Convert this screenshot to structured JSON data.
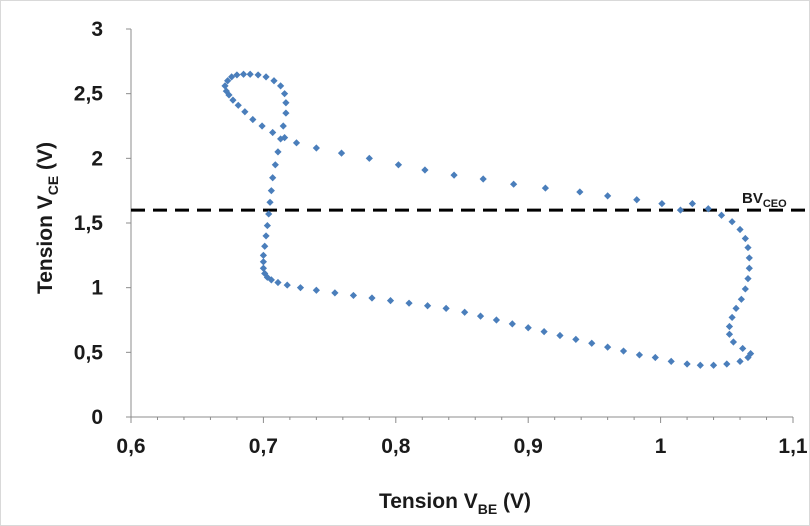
{
  "chart_data": {
    "type": "scatter",
    "xlabel": {
      "main": "Tension V",
      "sub": "BE",
      "unit": " (V)"
    },
    "ylabel": {
      "main": "Tension V",
      "sub": "CE",
      "unit": " (V)"
    },
    "xlim": [
      0.6,
      1.1
    ],
    "ylim": [
      0,
      3
    ],
    "x_ticks": [
      "0,6",
      "0,7",
      "0,8",
      "0,9",
      "1",
      "1,1"
    ],
    "y_ticks": [
      "0",
      "0,5",
      "1",
      "1,5",
      "2",
      "2,5",
      "3"
    ],
    "grid": false,
    "marker_color": "#4a7ebb",
    "reference_line": {
      "y": 1.6,
      "label_main": "BV",
      "label_sub": "CEO",
      "style": "dashed",
      "color": "#000000"
    },
    "series": [
      {
        "x": [
          0.672,
          0.671,
          0.673,
          0.676,
          0.68,
          0.685,
          0.69,
          0.696,
          0.702,
          0.708,
          0.713,
          0.716,
          0.717,
          0.717,
          0.715,
          0.713,
          0.711,
          0.709,
          0.707,
          0.706,
          0.705,
          0.704,
          0.703,
          0.702,
          0.701,
          0.7,
          0.7,
          0.7,
          0.701,
          0.703,
          0.706,
          0.711,
          0.718,
          0.728,
          0.74,
          0.754,
          0.768,
          0.782,
          0.796,
          0.81,
          0.824,
          0.838,
          0.852,
          0.864,
          0.876,
          0.888,
          0.9,
          0.912,
          0.924,
          0.936,
          0.948,
          0.96,
          0.972,
          0.984,
          0.996,
          1.008,
          1.02,
          1.03,
          1.04,
          1.05,
          1.06,
          1.066,
          1.068,
          1.062,
          1.055,
          1.052,
          1.052,
          1.054,
          1.057,
          1.061,
          1.064,
          1.066,
          1.067,
          1.067,
          1.066,
          1.064,
          1.06,
          1.054,
          1.046,
          1.036,
          1.024,
          1.015,
          1.001,
          0.982,
          0.96,
          0.939,
          0.913,
          0.889,
          0.866,
          0.844,
          0.822,
          0.802,
          0.78,
          0.759,
          0.74,
          0.725,
          0.716,
          0.707,
          0.699,
          0.692,
          0.686,
          0.681,
          0.677,
          0.674
        ],
        "y": [
          2.52,
          2.56,
          2.6,
          2.63,
          2.645,
          2.65,
          2.65,
          2.645,
          2.63,
          2.6,
          2.56,
          2.5,
          2.43,
          2.35,
          2.25,
          2.15,
          2.05,
          1.95,
          1.85,
          1.75,
          1.66,
          1.57,
          1.48,
          1.4,
          1.32,
          1.25,
          1.2,
          1.15,
          1.11,
          1.08,
          1.06,
          1.04,
          1.02,
          1.0,
          0.98,
          0.96,
          0.94,
          0.92,
          0.9,
          0.88,
          0.86,
          0.84,
          0.81,
          0.78,
          0.75,
          0.72,
          0.69,
          0.66,
          0.63,
          0.6,
          0.57,
          0.54,
          0.51,
          0.48,
          0.46,
          0.43,
          0.41,
          0.4,
          0.4,
          0.41,
          0.43,
          0.46,
          0.49,
          0.53,
          0.58,
          0.64,
          0.7,
          0.77,
          0.84,
          0.91,
          0.99,
          1.07,
          1.15,
          1.23,
          1.31,
          1.38,
          1.45,
          1.51,
          1.56,
          1.61,
          1.65,
          1.6,
          1.65,
          1.68,
          1.71,
          1.74,
          1.77,
          1.8,
          1.84,
          1.87,
          1.91,
          1.95,
          2.0,
          2.04,
          2.08,
          2.12,
          2.16,
          2.2,
          2.25,
          2.3,
          2.36,
          2.41,
          2.45,
          2.49
        ]
      }
    ]
  }
}
